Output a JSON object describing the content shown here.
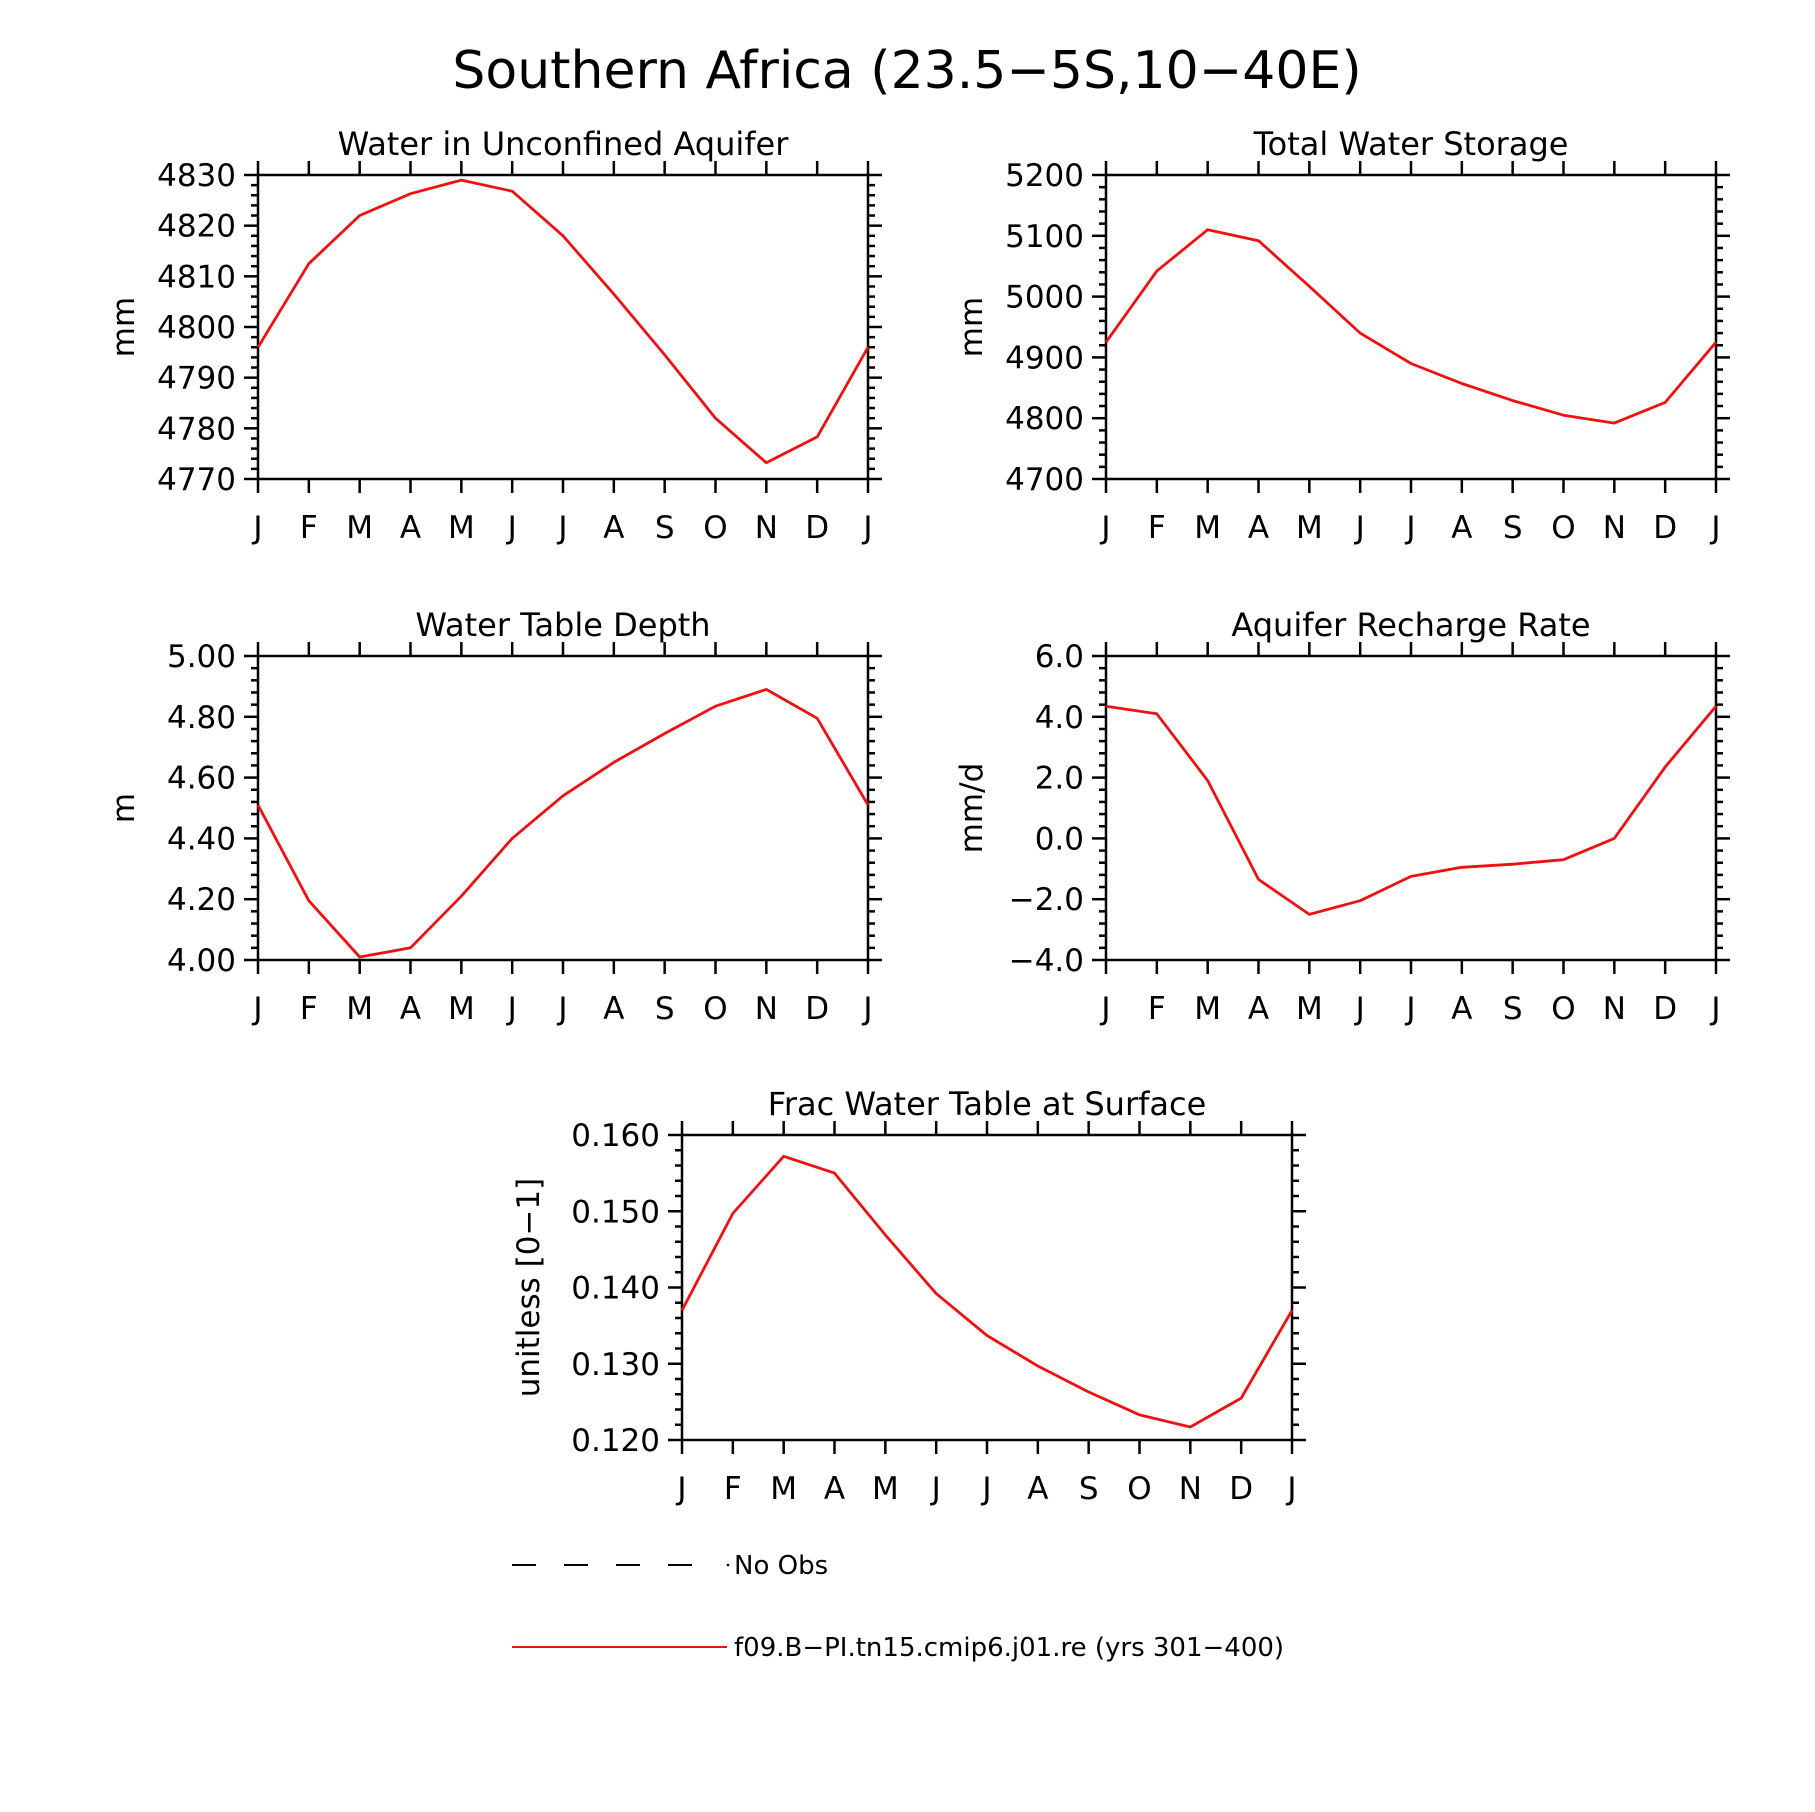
{
  "figure": {
    "title": "Southern Africa (23.5−5S,10−40E)"
  },
  "colors": {
    "model": "#ee1111",
    "obs": "#000000"
  },
  "legend": {
    "position": "bottom",
    "items": [
      {
        "label": "No Obs",
        "style": "dashed",
        "color": "#000000"
      },
      {
        "label": "f09.B−PI.tn15.cmip6.j01.re (yrs 301−400)",
        "style": "solid",
        "color": "#ee1111"
      }
    ]
  },
  "chart_data": [
    {
      "type": "line",
      "title": "Water in Unconfined Aquifer",
      "ylabel": "mm",
      "categories": [
        "J",
        "F",
        "M",
        "A",
        "M",
        "J",
        "J",
        "A",
        "S",
        "O",
        "N",
        "D",
        "J"
      ],
      "ylim": [
        4770,
        4830
      ],
      "yticks": [
        4770,
        4780,
        4790,
        4800,
        4810,
        4820,
        4830
      ],
      "ytick_labels": [
        "4770",
        "4780",
        "4790",
        "4800",
        "4810",
        "4820",
        "4830"
      ],
      "series": [
        {
          "values": [
            4796,
            4812.5,
            4822,
            4826.3,
            4829,
            4826.8,
            4818,
            4806.5,
            4794.5,
            4782,
            4773.2,
            4778.3,
            4796
          ]
        }
      ]
    },
    {
      "type": "line",
      "title": "Total Water Storage",
      "ylabel": "mm",
      "categories": [
        "J",
        "F",
        "M",
        "A",
        "M",
        "J",
        "J",
        "A",
        "S",
        "O",
        "N",
        "D",
        "J"
      ],
      "ylim": [
        4700,
        5200
      ],
      "yticks": [
        4700,
        4800,
        4900,
        5000,
        5100,
        5200
      ],
      "ytick_labels": [
        "4700",
        "4800",
        "4900",
        "5000",
        "5100",
        "5200"
      ],
      "series": [
        {
          "values": [
            4925,
            5042,
            5110,
            5092,
            5017,
            4940,
            4890,
            4857,
            4829,
            4805,
            4792,
            4826,
            4925
          ]
        }
      ]
    },
    {
      "type": "line",
      "title": "Water Table Depth",
      "ylabel": "m",
      "categories": [
        "J",
        "F",
        "M",
        "A",
        "M",
        "J",
        "J",
        "A",
        "S",
        "O",
        "N",
        "D",
        "J"
      ],
      "ylim": [
        4.0,
        5.0
      ],
      "yticks": [
        4.0,
        4.2,
        4.4,
        4.6,
        4.8,
        5.0
      ],
      "ytick_labels": [
        "4.00",
        "4.20",
        "4.40",
        "4.60",
        "4.80",
        "5.00"
      ],
      "series": [
        {
          "values": [
            4.51,
            4.195,
            4.01,
            4.04,
            4.21,
            4.4,
            4.54,
            4.65,
            4.745,
            4.835,
            4.89,
            4.795,
            4.51
          ]
        }
      ]
    },
    {
      "type": "line",
      "title": "Aquifer Recharge Rate",
      "ylabel": "mm/d",
      "categories": [
        "J",
        "F",
        "M",
        "A",
        "M",
        "J",
        "J",
        "A",
        "S",
        "O",
        "N",
        "D",
        "J"
      ],
      "ylim": [
        -4.0,
        6.0
      ],
      "yticks": [
        -4.0,
        -2.0,
        0.0,
        2.0,
        4.0,
        6.0
      ],
      "ytick_labels": [
        "−4.0",
        "−2.0",
        "0.0",
        "2.0",
        "4.0",
        "6.0"
      ],
      "series": [
        {
          "values": [
            4.35,
            4.1,
            1.9,
            -1.35,
            -2.5,
            -2.05,
            -1.25,
            -0.95,
            -0.85,
            -0.7,
            0.0,
            2.35,
            4.35
          ]
        }
      ]
    },
    {
      "type": "line",
      "title": "Frac Water Table at Surface",
      "ylabel": "unitless [0−1]",
      "categories": [
        "J",
        "F",
        "M",
        "A",
        "M",
        "J",
        "J",
        "A",
        "S",
        "O",
        "N",
        "D",
        "J"
      ],
      "ylim": [
        0.12,
        0.16
      ],
      "yticks": [
        0.12,
        0.13,
        0.14,
        0.15,
        0.16
      ],
      "ytick_labels": [
        "0.120",
        "0.130",
        "0.140",
        "0.150",
        "0.160"
      ],
      "series": [
        {
          "values": [
            0.137,
            0.1497,
            0.1572,
            0.155,
            0.1469,
            0.1392,
            0.1337,
            0.1297,
            0.1263,
            0.1233,
            0.1217,
            0.1255,
            0.137
          ]
        }
      ]
    }
  ]
}
